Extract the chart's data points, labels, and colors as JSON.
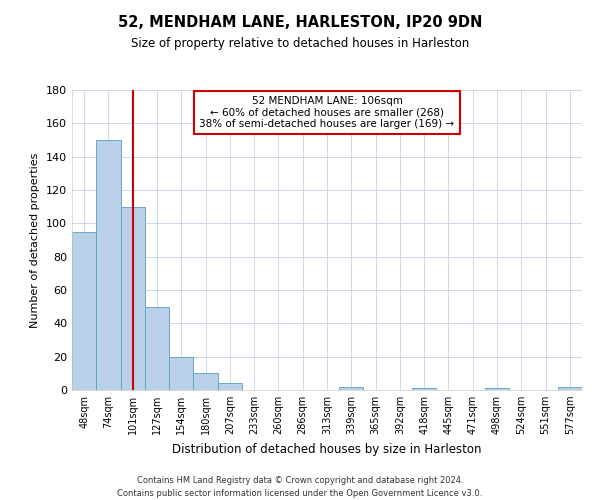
{
  "title": "52, MENDHAM LANE, HARLESTON, IP20 9DN",
  "subtitle": "Size of property relative to detached houses in Harleston",
  "xlabel": "Distribution of detached houses by size in Harleston",
  "ylabel": "Number of detached properties",
  "bar_labels": [
    "48sqm",
    "74sqm",
    "101sqm",
    "127sqm",
    "154sqm",
    "180sqm",
    "207sqm",
    "233sqm",
    "260sqm",
    "286sqm",
    "313sqm",
    "339sqm",
    "365sqm",
    "392sqm",
    "418sqm",
    "445sqm",
    "471sqm",
    "498sqm",
    "524sqm",
    "551sqm",
    "577sqm"
  ],
  "bar_heights": [
    95,
    150,
    110,
    50,
    20,
    10,
    4,
    0,
    0,
    0,
    0,
    2,
    0,
    0,
    1,
    0,
    0,
    1,
    0,
    0,
    2
  ],
  "bar_color": "#b8d0e8",
  "bar_edge_color": "#5a9ec9",
  "ylim": [
    0,
    180
  ],
  "yticks": [
    0,
    20,
    40,
    60,
    80,
    100,
    120,
    140,
    160,
    180
  ],
  "vline_x": 2,
  "vline_color": "#cc0000",
  "annotation_text": "52 MENDHAM LANE: 106sqm\n← 60% of detached houses are smaller (268)\n38% of semi-detached houses are larger (169) →",
  "annotation_box_edge_color": "#cc0000",
  "background_color": "#ffffff",
  "grid_color": "#d0d8e8",
  "footer": "Contains HM Land Registry data © Crown copyright and database right 2024.\nContains public sector information licensed under the Open Government Licence v3.0."
}
